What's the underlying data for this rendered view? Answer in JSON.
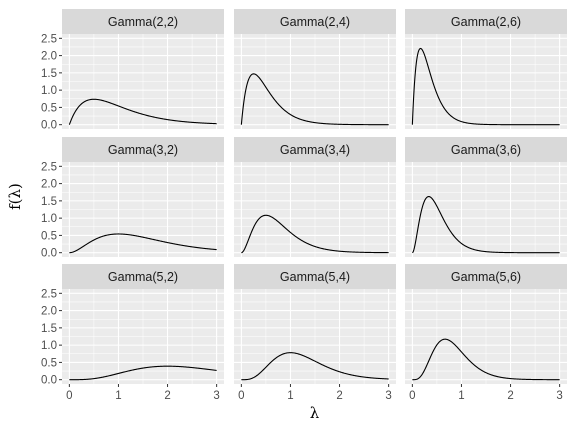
{
  "chart_data": {
    "type": "line",
    "layout": "facet-grid",
    "xlabel": "λ",
    "ylabel": "f(λ)",
    "xlim": [
      0,
      3
    ],
    "ylim": [
      0,
      2.5
    ],
    "x_ticks": [
      "0",
      "1",
      "2",
      "3"
    ],
    "y_ticks": [
      "0.0",
      "0.5",
      "1.0",
      "1.5",
      "2.0",
      "2.5"
    ],
    "grid": true,
    "panel_background": "#ebebeb",
    "strip_background": "#d9d9d9",
    "grid_color": "#ffffff",
    "line_color": "#000000",
    "panels": [
      {
        "label": "Gamma(2,2)",
        "shape": 2,
        "rate": 2
      },
      {
        "label": "Gamma(2,4)",
        "shape": 2,
        "rate": 4
      },
      {
        "label": "Gamma(2,6)",
        "shape": 2,
        "rate": 6
      },
      {
        "label": "Gamma(3,2)",
        "shape": 3,
        "rate": 2
      },
      {
        "label": "Gamma(3,4)",
        "shape": 3,
        "rate": 4
      },
      {
        "label": "Gamma(3,6)",
        "shape": 3,
        "rate": 6
      },
      {
        "label": "Gamma(5,2)",
        "shape": 5,
        "rate": 2
      },
      {
        "label": "Gamma(5,4)",
        "shape": 5,
        "rate": 4
      },
      {
        "label": "Gamma(5,6)",
        "shape": 5,
        "rate": 6
      }
    ]
  }
}
